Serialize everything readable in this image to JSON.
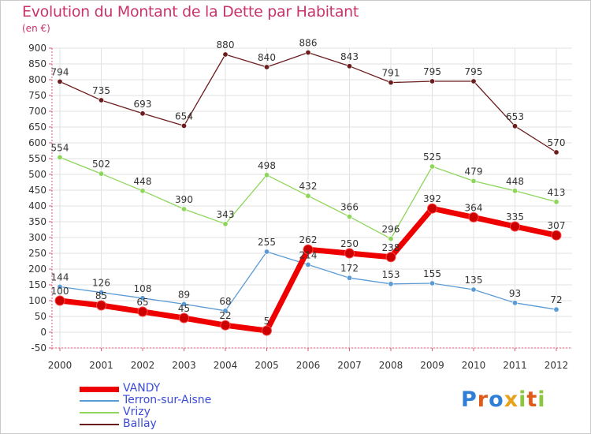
{
  "title": "Evolution du Montant de la Dette par Habitant",
  "unit": "(en €)",
  "logo": {
    "text": "Proxiti",
    "letters": [
      "P",
      "r",
      "o",
      "x",
      "i",
      "t",
      "i"
    ],
    "colors": [
      "#2f7fd6",
      "#e05a1a",
      "#2f7fd6",
      "#e7a21b",
      "#8dc63f",
      "#e05a1a",
      "#8dc63f"
    ]
  },
  "chart_data": {
    "type": "line",
    "title": "Evolution du Montant de la Dette par Habitant",
    "subtitle": "(en €)",
    "x": [
      "2000",
      "2001",
      "2002",
      "2003",
      "2004",
      "2005",
      "2006",
      "2007",
      "2008",
      "2009",
      "2010",
      "2011",
      "2012"
    ],
    "ylim": [
      -50,
      900
    ],
    "yticks": [
      "-50",
      "0",
      "50",
      "100",
      "150",
      "200",
      "250",
      "300",
      "350",
      "400",
      "450",
      "500",
      "550",
      "600",
      "650",
      "700",
      "750",
      "800",
      "850",
      "900"
    ],
    "grid": true,
    "legend_position": "bottom-left",
    "series": [
      {
        "name": "VANDY",
        "color": "#ee0000",
        "width": 7,
        "marker": 6,
        "values": [
          100,
          85,
          65,
          45,
          22,
          5,
          262,
          250,
          238,
          392,
          364,
          335,
          307
        ],
        "labels": [
          "100",
          "85",
          "65",
          "45",
          "22",
          "5",
          "262",
          "250",
          "238",
          "392",
          "364",
          "335",
          "307"
        ]
      },
      {
        "name": "Terron-sur-Aisne",
        "color": "#5b9bd5",
        "width": 1.3,
        "marker": 3.2,
        "values": [
          144,
          126,
          108,
          89,
          68,
          255,
          214,
          172,
          153,
          155,
          135,
          93,
          72
        ],
        "labels": [
          "144",
          "126",
          "108",
          "89",
          "68",
          "255",
          "214",
          "172",
          "153",
          "155",
          "135",
          "93",
          "72"
        ]
      },
      {
        "name": "Vrizy",
        "color": "#8ed65a",
        "width": 1.3,
        "marker": 3.2,
        "values": [
          554,
          502,
          448,
          390,
          343,
          498,
          432,
          366,
          296,
          525,
          479,
          448,
          413
        ],
        "labels": [
          "554",
          "502",
          "448",
          "390",
          "343",
          "498",
          "432",
          "366",
          "296",
          "525",
          "479",
          "448",
          "413"
        ]
      },
      {
        "name": "Ballay",
        "color": "#6b1d1d",
        "width": 1.3,
        "marker": 3.2,
        "values": [
          794,
          735,
          693,
          654,
          880,
          840,
          886,
          843,
          791,
          795,
          795,
          653,
          570
        ],
        "labels": [
          "794",
          "735",
          "693",
          "654",
          "880",
          "840",
          "886",
          "843",
          "791",
          "795",
          "795",
          "653",
          "570"
        ]
      }
    ]
  }
}
